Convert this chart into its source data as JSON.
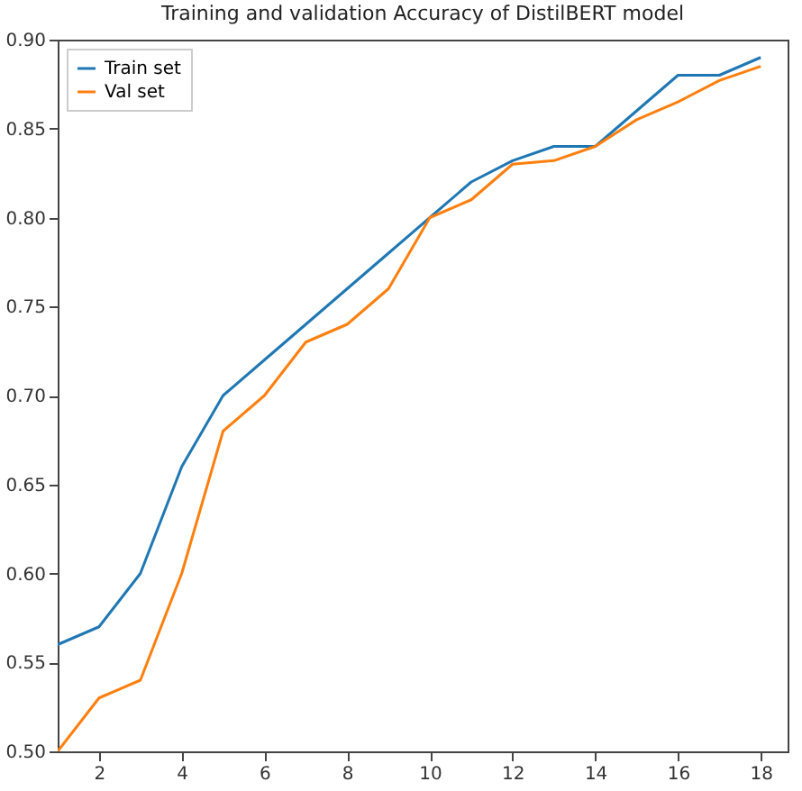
{
  "chart_data": {
    "type": "line",
    "title": "Training and validation Accuracy of DistilBERT model",
    "x": [
      1,
      2,
      3,
      4,
      5,
      6,
      7,
      8,
      9,
      10,
      11,
      12,
      13,
      14,
      15,
      16,
      17,
      18
    ],
    "series": [
      {
        "name": "Train set",
        "color": "#1f77b4",
        "values": [
          0.56,
          0.57,
          0.6,
          0.66,
          0.7,
          0.72,
          0.74,
          0.76,
          0.78,
          0.8,
          0.82,
          0.832,
          0.84,
          0.84,
          0.86,
          0.88,
          0.88,
          0.89
        ]
      },
      {
        "name": "Val set",
        "color": "#ff7f0e",
        "values": [
          0.5,
          0.53,
          0.54,
          0.6,
          0.68,
          0.7,
          0.73,
          0.74,
          0.76,
          0.8,
          0.81,
          0.83,
          0.832,
          0.84,
          0.855,
          0.865,
          0.877,
          0.885
        ]
      }
    ],
    "xlim": [
      1,
      18.65
    ],
    "xticks": [
      2,
      4,
      6,
      8,
      10,
      12,
      14,
      16,
      18
    ],
    "ylim": [
      0.5,
      0.9
    ],
    "yticks": [
      {
        "value": 0.5,
        "label": "0.50"
      },
      {
        "value": 0.55,
        "label": "0.55"
      },
      {
        "value": 0.6,
        "label": "0.60"
      },
      {
        "value": 0.65,
        "label": "0.65"
      },
      {
        "value": 0.7,
        "label": "0.70"
      },
      {
        "value": 0.75,
        "label": "0.75"
      },
      {
        "value": 0.8,
        "label": "0.80"
      },
      {
        "value": 0.85,
        "label": "0.85"
      },
      {
        "value": 0.9,
        "label": "0.90"
      }
    ],
    "legend": "top left",
    "grid": false
  }
}
